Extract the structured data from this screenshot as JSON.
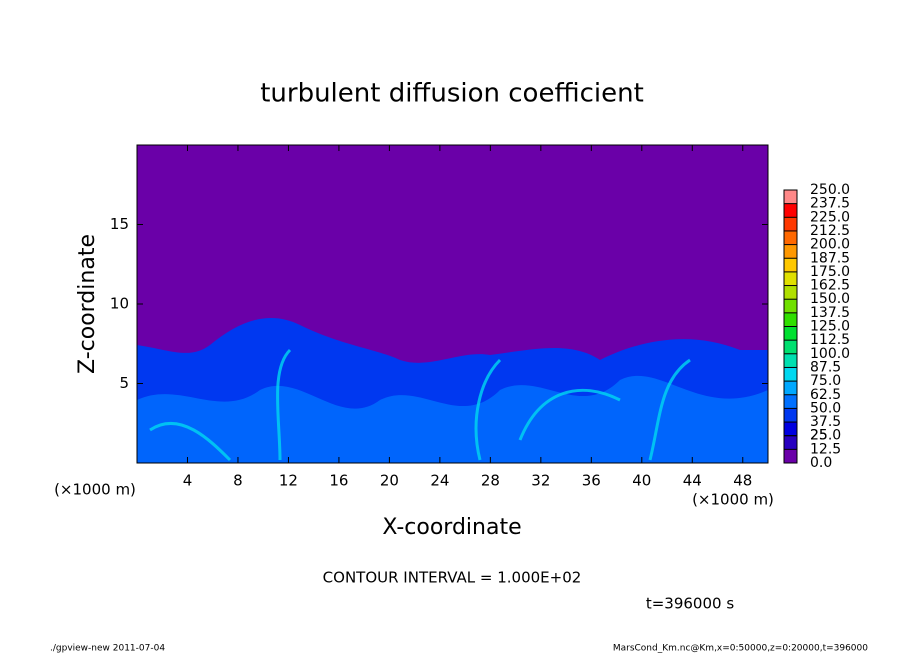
{
  "chart_data": {
    "type": "heatmap",
    "title": "turbulent diffusion coefficient",
    "xlabel": "X-coordinate",
    "ylabel": "Z-coordinate",
    "x_unit": "(×1000 m)",
    "y_unit": "(×1000 m)",
    "xlim": [
      0,
      50
    ],
    "ylim": [
      0,
      20
    ],
    "xticks": [
      4,
      8,
      12,
      16,
      20,
      24,
      28,
      32,
      36,
      40,
      44,
      48
    ],
    "yticks": [
      5,
      10,
      15
    ],
    "annotation": "CONTOUR INTERVAL = 1.000E+02",
    "time_label": "t=396000 s",
    "footer_left": "./gpview-new  2011-07-04",
    "footer_right": "MarsCond_Km.nc@Km,x=0:50000,z=0:20000,t=396000",
    "colorbar": {
      "clim": [
        0,
        250
      ],
      "ticks": [
        {
          "value": 0,
          "label": "0.0"
        },
        12.5,
        25,
        {
          "value": 25,
          "label": "25.0"
        },
        37.5,
        {
          "value": 50,
          "label": "50.0"
        },
        62.5,
        {
          "value": 75,
          "label": "75.0"
        },
        87.5,
        {
          "value": 100,
          "label": "100.0"
        },
        112.5,
        {
          "value": 125,
          "label": "125.0"
        },
        137.5,
        {
          "value": 150,
          "label": "150.0"
        },
        162.5,
        {
          "value": 175,
          "label": "175.0"
        },
        187.5,
        {
          "value": 200,
          "label": "200.0"
        },
        212.5,
        {
          "value": 225,
          "label": "225.0"
        },
        237.5,
        {
          "value": 250,
          "label": "250.0"
        }
      ],
      "colors": [
        "#6a00a8",
        "#2800c0",
        "#0000e0",
        "#0038f0",
        "#0070ff",
        "#00a8ff",
        "#00d8f0",
        "#00e0b0",
        "#00e070",
        "#00e030",
        "#30e000",
        "#70e000",
        "#b0e000",
        "#e0e000",
        "#ffc800",
        "#ff9800",
        "#ff6800",
        "#ff3800",
        "#ff0000",
        "#ff8888"
      ]
    }
  }
}
